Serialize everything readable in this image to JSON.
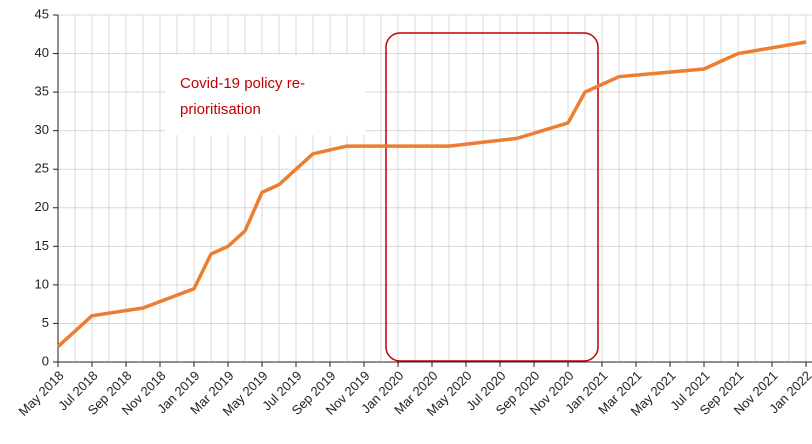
{
  "chart_data": {
    "type": "line",
    "x": [
      "2018-05",
      "2018-06",
      "2018-07",
      "2018-10",
      "2019-01",
      "2019-02",
      "2019-03",
      "2019-04",
      "2019-05",
      "2019-06",
      "2019-07",
      "2019-08",
      "2019-10",
      "2020-04",
      "2020-08",
      "2020-11",
      "2020-12",
      "2021-01",
      "2021-02",
      "2021-07",
      "2021-08",
      "2021-09",
      "2022-01"
    ],
    "series": [
      {
        "color": "#ed7d31",
        "values": [
          2,
          4,
          6,
          7,
          9.5,
          14,
          15,
          17,
          22,
          23,
          25,
          27,
          28,
          28,
          29,
          31,
          35,
          36,
          37,
          38,
          39,
          40,
          41.5
        ]
      }
    ],
    "xlim": [
      "2018-05",
      "2022-01"
    ],
    "xticks": [
      {
        "value": "2018-05",
        "label": "May 2018"
      },
      {
        "value": "2018-07",
        "label": "Jul 2018"
      },
      {
        "value": "2018-09",
        "label": "Sep 2018"
      },
      {
        "value": "2018-11",
        "label": "Nov 2018"
      },
      {
        "value": "2019-01",
        "label": "Jan 2019"
      },
      {
        "value": "2019-03",
        "label": "Mar 2019"
      },
      {
        "value": "2019-05",
        "label": "May 2019"
      },
      {
        "value": "2019-07",
        "label": "Jul 2019"
      },
      {
        "value": "2019-09",
        "label": "Sep 2019"
      },
      {
        "value": "2019-11",
        "label": "Nov 2019"
      },
      {
        "value": "2020-01",
        "label": "Jan 2020"
      },
      {
        "value": "2020-03",
        "label": "Mar 2020"
      },
      {
        "value": "2020-05",
        "label": "May 2020"
      },
      {
        "value": "2020-07",
        "label": "Jul 2020"
      },
      {
        "value": "2020-09",
        "label": "Sep 2020"
      },
      {
        "value": "2020-11",
        "label": "Nov 2020"
      },
      {
        "value": "2021-01",
        "label": "Jan 2021"
      },
      {
        "value": "2021-03",
        "label": "Mar 2021"
      },
      {
        "value": "2021-05",
        "label": "May 2021"
      },
      {
        "value": "2021-07",
        "label": "Jul 2021"
      },
      {
        "value": "2021-09",
        "label": "Sep 2021"
      },
      {
        "value": "2021-11",
        "label": "Nov 2021"
      },
      {
        "value": "2022-01",
        "label": "Jan 2022"
      }
    ],
    "ylim": [
      0,
      45
    ],
    "yticks": [
      0,
      5,
      10,
      15,
      20,
      25,
      30,
      35,
      40,
      45
    ],
    "grid": true,
    "annotation": {
      "lines": [
        "Covid-19 policy re-",
        "prioritisation"
      ]
    }
  }
}
